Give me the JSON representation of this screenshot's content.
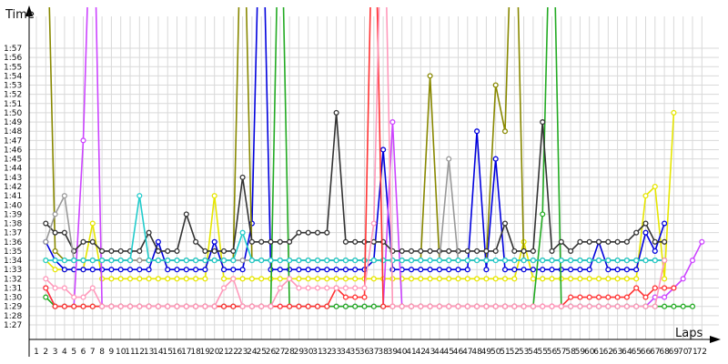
{
  "chart_data": {
    "type": "line",
    "ylabel": "Time",
    "xlabel": "Laps",
    "x_categories": [
      "1",
      "2",
      "3",
      "4",
      "5",
      "6",
      "7",
      "8",
      "9",
      "10",
      "11",
      "12",
      "13",
      "14",
      "15",
      "16",
      "17",
      "18",
      "19",
      "20",
      "21",
      "22",
      "23",
      "24",
      "25",
      "26",
      "27",
      "28",
      "29",
      "30",
      "31",
      "32",
      "33",
      "34",
      "35",
      "36",
      "37",
      "38",
      "39",
      "40",
      "41",
      "42",
      "43",
      "44",
      "45",
      "46",
      "47",
      "48",
      "49",
      "50",
      "51",
      "52",
      "53",
      "54",
      "55",
      "56",
      "57",
      "58",
      "59",
      "60",
      "61",
      "62",
      "63",
      "64",
      "65",
      "66",
      "67",
      "68",
      "69",
      "70",
      "71",
      "72"
    ],
    "y_ticks": [
      "1:27",
      "1:28",
      "1:29",
      "1:30",
      "1:31",
      "1:32",
      "1:33",
      "1:34",
      "1:35",
      "1:36",
      "1:37",
      "1:38",
      "1:39",
      "1:40",
      "1:41",
      "1:42",
      "1:43",
      "1:44",
      "1:45",
      "1:46",
      "1:47",
      "1:48",
      "1:49",
      "1:50",
      "1:51",
      "1:52",
      "1:53",
      "1:54",
      "1:55",
      "1:56",
      "1:57"
    ],
    "ylim": [
      87,
      117
    ],
    "grid": true,
    "series": [
      {
        "color": "#e6e600",
        "values": [
          null,
          94,
          93,
          93,
          93,
          93,
          98,
          92,
          92,
          92,
          92,
          92,
          92,
          92,
          92,
          92,
          92,
          92,
          92,
          101,
          92,
          92,
          92,
          92,
          92,
          92,
          92,
          92,
          92,
          92,
          92,
          92,
          92,
          92,
          92,
          92,
          92,
          92,
          92,
          92,
          92,
          92,
          92,
          92,
          92,
          92,
          92,
          92,
          92,
          92,
          92,
          92,
          96,
          92,
          92,
          92,
          92,
          92,
          92,
          92,
          92,
          92,
          92,
          92,
          92,
          101,
          102,
          92,
          110
        ]
      },
      {
        "color": "#0000dd",
        "values": [
          null,
          96,
          94,
          93,
          93,
          93,
          93,
          93,
          93,
          93,
          93,
          93,
          93,
          96,
          93,
          93,
          93,
          93,
          93,
          96,
          93,
          93,
          93,
          98,
          140,
          93,
          93,
          93,
          93,
          93,
          93,
          93,
          93,
          93,
          93,
          93,
          94,
          106,
          93,
          93,
          93,
          93,
          93,
          93,
          93,
          93,
          93,
          108,
          93,
          105,
          93,
          93,
          93,
          93,
          93,
          93,
          93,
          93,
          93,
          93,
          96,
          93,
          93,
          93,
          93,
          97,
          95,
          98
        ]
      },
      {
        "color": "#888800",
        "values": [
          null,
          138,
          95,
          94,
          94,
          94,
          94,
          94,
          94,
          94,
          94,
          94,
          94,
          94,
          94,
          94,
          94,
          94,
          94,
          94,
          94,
          94,
          140,
          94,
          94,
          94,
          94,
          94,
          94,
          94,
          94,
          94,
          94,
          94,
          94,
          94,
          94,
          94,
          94,
          94,
          94,
          94,
          114,
          94,
          94,
          94,
          94,
          94,
          94,
          113,
          108,
          140,
          94,
          94,
          94,
          94,
          94,
          94,
          94,
          94,
          94,
          94,
          94,
          94,
          94,
          94,
          94,
          94
        ]
      },
      {
        "color": "#cc44ff",
        "values": [
          null,
          91,
          89,
          89,
          89,
          107,
          140,
          89,
          89,
          89,
          89,
          89,
          89,
          89,
          89,
          89,
          89,
          89,
          89,
          89,
          89,
          89,
          89,
          89,
          89,
          89,
          89,
          89,
          89,
          89,
          89,
          89,
          89,
          89,
          89,
          89,
          89,
          89,
          109,
          89,
          89,
          89,
          89,
          89,
          89,
          89,
          89,
          89,
          89,
          89,
          89,
          89,
          89,
          89,
          89,
          89,
          89,
          89,
          89,
          89,
          89,
          89,
          89,
          89,
          89,
          89,
          90,
          90,
          91,
          92,
          94,
          96
        ]
      },
      {
        "color": "#22aa22",
        "values": [
          null,
          90,
          89,
          89,
          89,
          89,
          89,
          89,
          89,
          89,
          89,
          89,
          89,
          89,
          89,
          89,
          89,
          89,
          89,
          89,
          89,
          89,
          89,
          89,
          89,
          89,
          140,
          89,
          89,
          89,
          89,
          89,
          89,
          89,
          89,
          89,
          89,
          89,
          89,
          89,
          89,
          89,
          89,
          89,
          89,
          89,
          89,
          89,
          89,
          89,
          89,
          89,
          89,
          89,
          99,
          140,
          89,
          89,
          89,
          89,
          89,
          89,
          89,
          89,
          89,
          89,
          89,
          89,
          89,
          89,
          89
        ]
      },
      {
        "color": "#333333",
        "values": [
          null,
          98,
          97,
          97,
          95,
          96,
          96,
          95,
          95,
          95,
          95,
          95,
          97,
          95,
          95,
          95,
          99,
          96,
          95,
          95,
          95,
          95,
          103,
          96,
          96,
          96,
          96,
          96,
          97,
          97,
          97,
          97,
          110,
          96,
          96,
          96,
          96,
          96,
          95,
          95,
          95,
          95,
          95,
          95,
          95,
          95,
          95,
          95,
          95,
          95,
          98,
          95,
          95,
          95,
          109,
          95,
          96,
          95,
          96,
          96,
          96,
          96,
          96,
          96,
          97,
          98,
          96,
          96
        ]
      },
      {
        "color": "#999999",
        "values": [
          null,
          96,
          99,
          101,
          94,
          94,
          94,
          94,
          94,
          94,
          94,
          94,
          94,
          94,
          94,
          94,
          94,
          94,
          94,
          94,
          94,
          94,
          94,
          94,
          94,
          94,
          94,
          94,
          94,
          94,
          94,
          94,
          94,
          94,
          94,
          94,
          94,
          94,
          94,
          94,
          94,
          94,
          94,
          94,
          105,
          94,
          94,
          94,
          94,
          94,
          94,
          94,
          94,
          94,
          94,
          94,
          94,
          94,
          94,
          94,
          94,
          94,
          94,
          94,
          94,
          94,
          94,
          94
        ]
      },
      {
        "color": "#22cccc",
        "values": [
          null,
          94,
          94,
          94,
          94,
          94,
          94,
          94,
          94,
          94,
          94,
          101,
          94,
          94,
          94,
          94,
          94,
          94,
          94,
          94,
          94,
          94,
          97,
          94,
          94,
          94,
          94,
          94,
          94,
          94,
          94,
          94,
          94,
          94,
          94,
          94,
          94,
          94,
          94,
          94,
          94,
          94,
          94,
          94,
          94,
          94,
          94,
          94,
          94,
          94,
          94,
          94,
          94,
          94,
          94,
          94,
          94,
          94,
          94,
          94,
          94,
          94,
          94,
          94,
          94,
          94,
          94,
          94
        ]
      },
      {
        "color": "#ff3333",
        "values": [
          null,
          91,
          89,
          89,
          89,
          89,
          89,
          89,
          89,
          89,
          89,
          89,
          89,
          89,
          89,
          89,
          89,
          89,
          89,
          89,
          89,
          89,
          89,
          89,
          89,
          89,
          89,
          89,
          89,
          89,
          89,
          89,
          91,
          90,
          90,
          90,
          140,
          89,
          89,
          89,
          89,
          89,
          89,
          89,
          89,
          89,
          89,
          89,
          89,
          89,
          89,
          89,
          89,
          89,
          89,
          89,
          89,
          90,
          90,
          90,
          90,
          90,
          90,
          90,
          91,
          90,
          91,
          91,
          91
        ]
      },
      {
        "color": "#ff99bb",
        "values": [
          null,
          92,
          91,
          91,
          90,
          90,
          91,
          89,
          89,
          89,
          89,
          89,
          89,
          89,
          89,
          89,
          89,
          89,
          89,
          89,
          91,
          92,
          89,
          89,
          89,
          89,
          91,
          92,
          91,
          91,
          91,
          91,
          91,
          91,
          91,
          91,
          98,
          140,
          89,
          89,
          89,
          89,
          89,
          89,
          89,
          89,
          89,
          89,
          89,
          89,
          89,
          89,
          89,
          89,
          89,
          89,
          89,
          89,
          89,
          89,
          89,
          89,
          89,
          89,
          89,
          89,
          89,
          94
        ]
      }
    ]
  }
}
